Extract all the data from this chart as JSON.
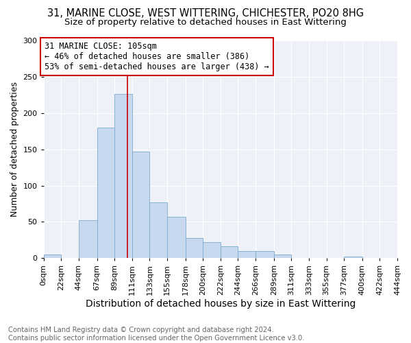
{
  "title1": "31, MARINE CLOSE, WEST WITTERING, CHICHESTER, PO20 8HG",
  "title2": "Size of property relative to detached houses in East Wittering",
  "xlabel": "Distribution of detached houses by size in East Wittering",
  "ylabel": "Number of detached properties",
  "bin_edges": [
    0,
    22,
    44,
    67,
    89,
    111,
    133,
    155,
    178,
    200,
    222,
    244,
    266,
    289,
    311,
    333,
    355,
    377,
    400,
    422,
    444
  ],
  "bar_heights": [
    5,
    0,
    52,
    180,
    226,
    147,
    77,
    57,
    28,
    22,
    16,
    10,
    10,
    5,
    0,
    0,
    0,
    2,
    0,
    0
  ],
  "bar_color": "#c8d8ee",
  "bar_edge_color": "#7aaace",
  "vline_x": 105,
  "vline_color": "#cc0000",
  "annotation_text": "31 MARINE CLOSE: 105sqm\n← 46% of detached houses are smaller (386)\n53% of semi-detached houses are larger (438) →",
  "annotation_box_color": "#cc0000",
  "ylim": [
    0,
    300
  ],
  "yticks": [
    0,
    50,
    100,
    150,
    200,
    250,
    300
  ],
  "background_color": "#eef2f8",
  "footer_text": "Contains HM Land Registry data © Crown copyright and database right 2024.\nContains public sector information licensed under the Open Government Licence v3.0.",
  "title1_fontsize": 10.5,
  "title2_fontsize": 9.5,
  "xlabel_fontsize": 10,
  "ylabel_fontsize": 9,
  "tick_fontsize": 8,
  "footer_fontsize": 7.2,
  "annotation_fontsize": 8.5
}
